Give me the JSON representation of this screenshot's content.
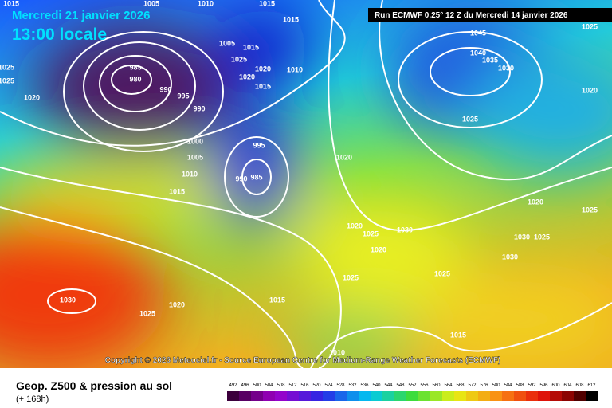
{
  "header": {
    "date": "Mercredi 21 janvier 2026",
    "time": "13:00 locale",
    "run": "Run ECMWF 0.25° 12 Z du Mercredi 14 janvier 2026"
  },
  "copyright": "Copyright © 2026 Meteociel.fr - Source European Centre for Medium-Range Weather Forecasts (ECMWF)",
  "footer": {
    "title": "Geop. Z500 & pression au sol",
    "lead": "(+ 168h)"
  },
  "scale": [
    "492",
    "496",
    "500",
    "504",
    "508",
    "512",
    "516",
    "520",
    "524",
    "528",
    "532",
    "536",
    "540",
    "544",
    "548",
    "552",
    "556",
    "560",
    "564",
    "568",
    "572",
    "576",
    "580",
    "584",
    "588",
    "592",
    "596",
    "600",
    "604",
    "608",
    "612"
  ],
  "isobar_labels": [
    "1015",
    "1005",
    "1010",
    "1015",
    "1015",
    "1025",
    "1025",
    "1020",
    "985",
    "980",
    "990",
    "995",
    "990",
    "1005",
    "1015",
    "1025",
    "1020",
    "1010",
    "1020",
    "1015",
    "995",
    "1000",
    "1005",
    "1010",
    "1015",
    "990",
    "985",
    "1020",
    "1020",
    "1025",
    "1030",
    "1020",
    "1025",
    "1015",
    "1030",
    "1025",
    "1020",
    "1025",
    "1015",
    "1010",
    "1045",
    "1040",
    "1035",
    "1030",
    "1025",
    "1020",
    "1020",
    "1025",
    "1030",
    "1025",
    "1030",
    "1025"
  ]
}
